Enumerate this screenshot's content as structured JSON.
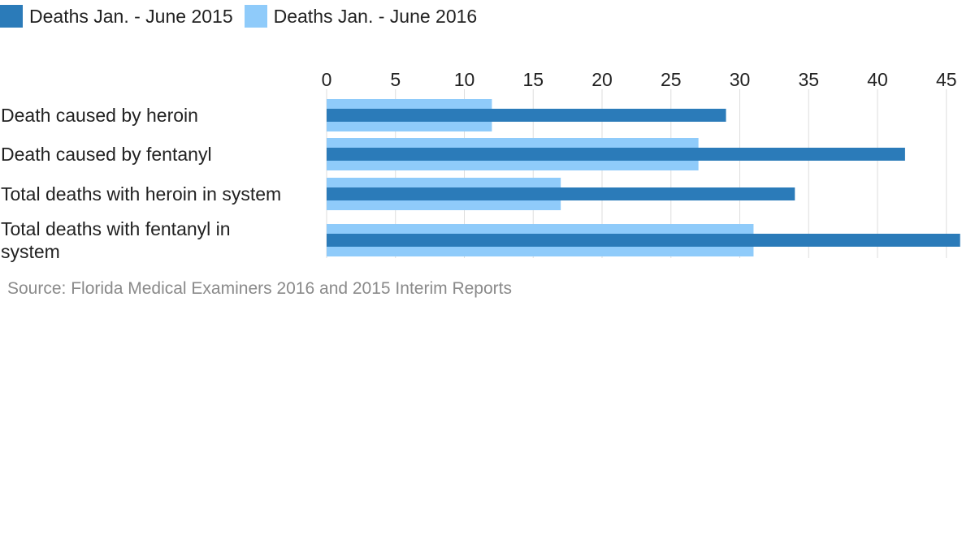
{
  "chart_data": {
    "type": "bar",
    "orientation": "horizontal",
    "categories": [
      "Death caused by heroin",
      "Death caused by fentanyl",
      "Total deaths with heroin in system",
      "Total deaths with fentanyl in system"
    ],
    "category_lines": [
      [
        "Death caused by heroin"
      ],
      [
        "Death caused by fentanyl"
      ],
      [
        "Total deaths with heroin in system"
      ],
      [
        "Total deaths with fentanyl in",
        "system"
      ]
    ],
    "series": [
      {
        "name": "Deaths Jan. - June 2015",
        "values": [
          29,
          42,
          34,
          46
        ],
        "color": "#2b7bb9"
      },
      {
        "name": "Deaths Jan. - June 2016",
        "values": [
          12,
          27,
          17,
          31
        ],
        "color": "#8fcbfa"
      }
    ],
    "x_ticks": [
      0,
      5,
      10,
      15,
      20,
      25,
      30,
      35,
      40,
      45
    ],
    "xlim": [
      0,
      46
    ],
    "axis_position": "top",
    "grid": true,
    "legend_position": "top-left",
    "source": "Source: Florida Medical Examiners 2016 and 2015 Interim Reports"
  }
}
